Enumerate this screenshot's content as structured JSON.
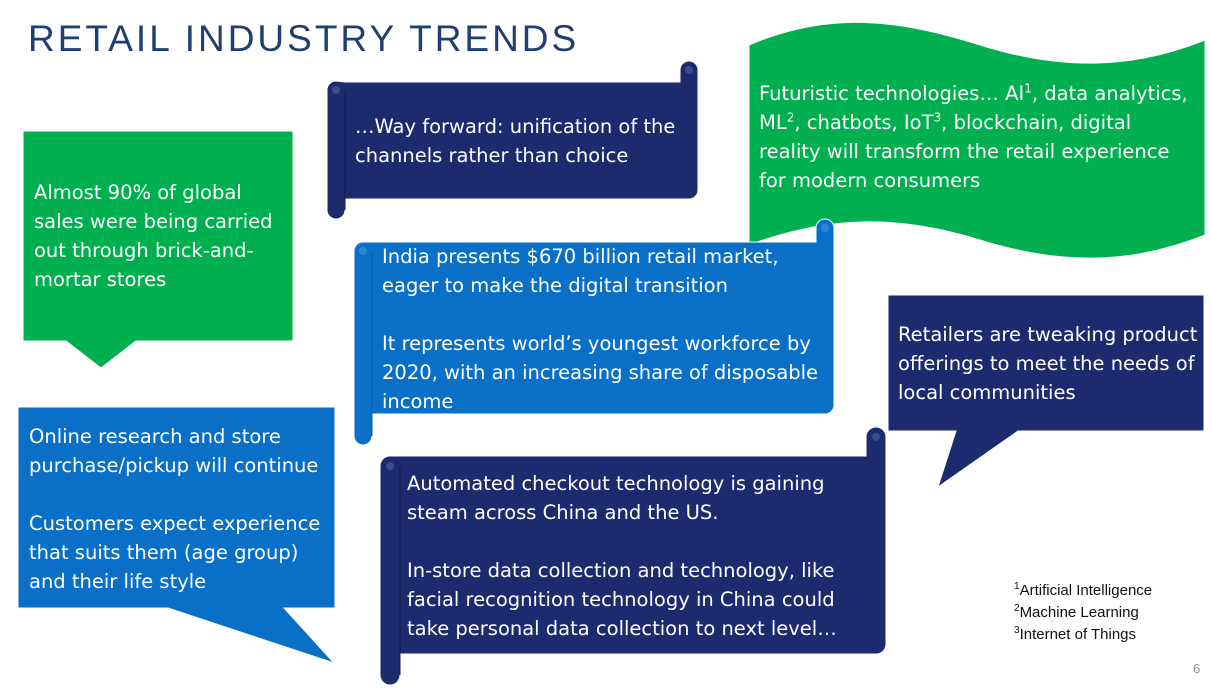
{
  "title": "RETAIL INDUSTRY TRENDS",
  "colors": {
    "green": "#00b050",
    "navy": "#1c2a6e",
    "blue": "#0a6fc7",
    "title": "#1f3f73"
  },
  "callout_global_sales": {
    "text": "Almost 90% of global sales were being carried out through brick-and-mortar stores"
  },
  "scroll_way_forward": {
    "text": "…Way forward: unification of the channels rather than choice"
  },
  "wave_futuristic": {
    "prefix": "Futuristic technologies… AI",
    "sup1": "1",
    "part2": ", data analytics, ML",
    "sup2": "2",
    "part3": ", chatbots, IoT",
    "sup3": "3",
    "suffix": ", blockchain, digital reality will transform the retail experience for modern consumers"
  },
  "scroll_india": {
    "para1": "India presents $670 billion retail market, eager to make the digital transition",
    "para2": "It represents world’s youngest workforce by 2020, with an increasing share of disposable income"
  },
  "callout_retailers": {
    "text": "Retailers are tweaking product offerings to meet the needs of local communities"
  },
  "callout_online": {
    "para1": "Online research and store purchase/pickup will continue",
    "para2": "Customers expect experience that suits them (age group) and their life style"
  },
  "scroll_checkout": {
    "para1": "Automated checkout technology is gaining steam across China and the US.",
    "para2": "In-store data collection and technology, like facial recognition technology in China could take personal data collection to next level…"
  },
  "footnotes": [
    {
      "num": "1",
      "text": "Artificial Intelligence"
    },
    {
      "num": "2",
      "text": "Machine Learning"
    },
    {
      "num": "3",
      "text": "Internet of Things"
    }
  ],
  "page_number": "6"
}
